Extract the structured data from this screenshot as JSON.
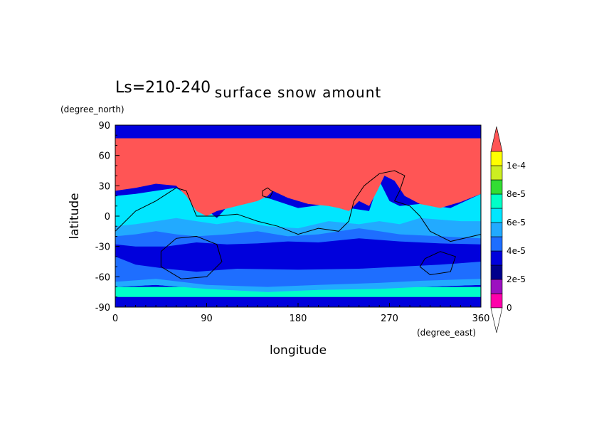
{
  "chart_data": {
    "type": "heatmap",
    "title": "surface snow amount",
    "subtitle": "Ls=210-240",
    "xlabel": "longitude",
    "ylabel": "latitude",
    "x_unit": "(degree_east)",
    "y_unit": "(degree_north)",
    "xlim": [
      0,
      360
    ],
    "ylim": [
      -90,
      90
    ],
    "x_ticks": [
      "0",
      "90",
      "180",
      "270",
      "360"
    ],
    "y_ticks": [
      "90",
      "60",
      "30",
      "0",
      "-30",
      "-60",
      "-90"
    ],
    "colorbar": {
      "labels": [
        "0",
        "2e-5",
        "4e-5",
        "6e-5",
        "8e-5",
        "1e-4"
      ],
      "levels": [
        0,
        1e-05,
        2e-05,
        3e-05,
        4e-05,
        5e-05,
        6e-05,
        7e-05,
        8e-05,
        9e-05,
        0.0001,
        0.00011
      ],
      "colors": [
        "#ff00aa",
        "#9c10c0",
        "#00008c",
        "#0000dc",
        "#1e6eff",
        "#22aaff",
        "#00e6ff",
        "#00ffc8",
        "#33dd33",
        "#ccee22",
        "#ffff00",
        "#ff8c00",
        "#ff5555"
      ],
      "extend": "both"
    },
    "bands": [
      {
        "level": "6e-5",
        "color": "#00ffc8",
        "points": [
          [
            0,
            -80
          ],
          [
            360,
            -80
          ],
          [
            360,
            -70
          ],
          [
            0,
            -70
          ]
        ]
      },
      {
        "level": "5e-5",
        "color": "#00e6ff",
        "points": [
          [
            0,
            -70
          ],
          [
            40,
            -68
          ],
          [
            90,
            -72
          ],
          [
            150,
            -75
          ],
          [
            200,
            -73
          ],
          [
            260,
            -72
          ],
          [
            300,
            -70
          ],
          [
            360,
            -68
          ],
          [
            360,
            22
          ],
          [
            330,
            8
          ],
          [
            300,
            12
          ],
          [
            280,
            10
          ],
          [
            270,
            15
          ],
          [
            260,
            35
          ],
          [
            250,
            5
          ],
          [
            230,
            8
          ],
          [
            210,
            12
          ],
          [
            180,
            8
          ],
          [
            150,
            18
          ],
          [
            120,
            20
          ],
          [
            100,
            -2
          ],
          [
            80,
            15
          ],
          [
            60,
            28
          ],
          [
            40,
            25
          ],
          [
            20,
            22
          ],
          [
            0,
            20
          ]
        ]
      },
      {
        "level": "4e-5",
        "color": "#22aaff",
        "points": [
          [
            0,
            -70
          ],
          [
            40,
            -68
          ],
          [
            90,
            -72
          ],
          [
            150,
            -75
          ],
          [
            200,
            -73
          ],
          [
            260,
            -72
          ],
          [
            300,
            -70
          ],
          [
            360,
            -68
          ],
          [
            360,
            -5
          ],
          [
            340,
            -5
          ],
          [
            300,
            -2
          ],
          [
            280,
            -8
          ],
          [
            260,
            -5
          ],
          [
            240,
            -8
          ],
          [
            210,
            -5
          ],
          [
            180,
            -12
          ],
          [
            150,
            -10
          ],
          [
            120,
            -5
          ],
          [
            100,
            -8
          ],
          [
            80,
            -5
          ],
          [
            60,
            -2
          ],
          [
            40,
            -5
          ],
          [
            20,
            -8
          ],
          [
            0,
            -10
          ]
        ]
      },
      {
        "level": "3e-5",
        "color": "#1e6eff",
        "points": [
          [
            0,
            -65
          ],
          [
            40,
            -62
          ],
          [
            90,
            -68
          ],
          [
            150,
            -70
          ],
          [
            200,
            -68
          ],
          [
            260,
            -66
          ],
          [
            300,
            -64
          ],
          [
            360,
            -62
          ],
          [
            360,
            -22
          ],
          [
            320,
            -20
          ],
          [
            280,
            -18
          ],
          [
            260,
            -15
          ],
          [
            240,
            -12
          ],
          [
            200,
            -18
          ],
          [
            170,
            -20
          ],
          [
            140,
            -15
          ],
          [
            110,
            -18
          ],
          [
            80,
            -20
          ],
          [
            60,
            -18
          ],
          [
            40,
            -15
          ],
          [
            20,
            -18
          ],
          [
            0,
            -20
          ]
        ]
      },
      {
        "level": "2e-5",
        "color": "#0000dc",
        "points": [
          [
            0,
            -40
          ],
          [
            20,
            -48
          ],
          [
            50,
            -52
          ],
          [
            80,
            -55
          ],
          [
            120,
            -52
          ],
          [
            180,
            -53
          ],
          [
            240,
            -52
          ],
          [
            280,
            -50
          ],
          [
            320,
            -48
          ],
          [
            360,
            -45
          ],
          [
            360,
            -28
          ],
          [
            320,
            -27
          ],
          [
            280,
            -25
          ],
          [
            240,
            -22
          ],
          [
            200,
            -26
          ],
          [
            170,
            -25
          ],
          [
            140,
            -27
          ],
          [
            110,
            -28
          ],
          [
            80,
            -26
          ],
          [
            50,
            -30
          ],
          [
            20,
            -30
          ],
          [
            0,
            -28
          ]
        ]
      },
      {
        "level": "1.1e-4",
        "color": "#ff5555",
        "points": [
          [
            0,
            77
          ],
          [
            360,
            77
          ],
          [
            360,
            22
          ],
          [
            340,
            14
          ],
          [
            320,
            8
          ],
          [
            300,
            12
          ],
          [
            285,
            20
          ],
          [
            275,
            35
          ],
          [
            265,
            40
          ],
          [
            258,
            25
          ],
          [
            250,
            10
          ],
          [
            240,
            15
          ],
          [
            230,
            5
          ],
          [
            220,
            8
          ],
          [
            210,
            10
          ],
          [
            190,
            12
          ],
          [
            170,
            18
          ],
          [
            155,
            25
          ],
          [
            150,
            20
          ],
          [
            140,
            15
          ],
          [
            120,
            10
          ],
          [
            100,
            5
          ],
          [
            90,
            0
          ],
          [
            80,
            5
          ],
          [
            70,
            20
          ],
          [
            60,
            30
          ],
          [
            40,
            32
          ],
          [
            20,
            28
          ],
          [
            0,
            25
          ]
        ]
      }
    ],
    "contours": [
      {
        "points": [
          [
            0,
            -15
          ],
          [
            20,
            5
          ],
          [
            40,
            15
          ],
          [
            60,
            28
          ],
          [
            70,
            25
          ],
          [
            80,
            0
          ],
          [
            100,
            0
          ],
          [
            120,
            2
          ],
          [
            140,
            -5
          ],
          [
            160,
            -10
          ],
          [
            180,
            -18
          ],
          [
            200,
            -12
          ],
          [
            220,
            -15
          ],
          [
            230,
            -5
          ],
          [
            235,
            15
          ],
          [
            245,
            30
          ],
          [
            260,
            42
          ],
          [
            275,
            45
          ],
          [
            285,
            40
          ],
          [
            280,
            25
          ],
          [
            275,
            15
          ],
          [
            290,
            10
          ],
          [
            300,
            0
          ],
          [
            310,
            -15
          ],
          [
            330,
            -25
          ],
          [
            360,
            -18
          ]
        ]
      },
      {
        "points": [
          [
            145,
            25
          ],
          [
            150,
            28
          ],
          [
            155,
            24
          ],
          [
            152,
            18
          ],
          [
            145,
            20
          ],
          [
            145,
            25
          ]
        ]
      },
      {
        "points": [
          [
            45,
            -35
          ],
          [
            60,
            -22
          ],
          [
            80,
            -20
          ],
          [
            100,
            -28
          ],
          [
            105,
            -45
          ],
          [
            90,
            -60
          ],
          [
            65,
            -62
          ],
          [
            45,
            -50
          ],
          [
            45,
            -35
          ]
        ]
      },
      {
        "points": [
          [
            305,
            -42
          ],
          [
            320,
            -35
          ],
          [
            335,
            -40
          ],
          [
            330,
            -55
          ],
          [
            310,
            -58
          ],
          [
            300,
            -50
          ],
          [
            305,
            -42
          ]
        ]
      }
    ]
  }
}
